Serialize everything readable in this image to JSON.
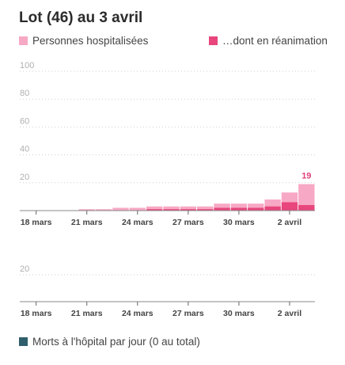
{
  "title": "Lot (46) au 3 avril",
  "legend": [
    {
      "label": "Personnes hospitalisées",
      "color": "#f7a8c4"
    },
    {
      "label": "…dont en réanimation",
      "color": "#e8467c"
    }
  ],
  "bottom_legend": {
    "label": "Morts à l'hôpital par jour (0 au total)",
    "color": "#2e5f6b"
  },
  "chart_data": [
    {
      "type": "bar",
      "x": [
        "18 mars",
        "19 mars",
        "20 mars",
        "21 mars",
        "22 mars",
        "23 mars",
        "24 mars",
        "25 mars",
        "26 mars",
        "27 mars",
        "28 mars",
        "29 mars",
        "30 mars",
        "31 mars",
        "1 avril",
        "2 avril",
        "3 avril"
      ],
      "xticks": [
        "18 mars",
        "21 mars",
        "24 mars",
        "27 mars",
        "30 mars",
        "2 avril"
      ],
      "yticks": [
        "100",
        "80",
        "60",
        "40",
        "20"
      ],
      "ylim": [
        0,
        100
      ],
      "series": [
        {
          "name": "Personnes hospitalisées",
          "values": [
            0,
            0,
            0,
            1,
            1,
            2,
            2,
            3,
            3,
            3,
            3,
            5,
            5,
            5,
            8,
            13,
            19
          ]
        },
        {
          "name": "…dont en réanimation",
          "values": [
            0,
            0,
            0,
            0,
            0,
            0,
            0,
            1,
            1,
            1,
            1,
            2,
            2,
            2,
            3,
            6,
            4
          ]
        }
      ],
      "last_label": "19"
    },
    {
      "type": "bar",
      "x": [
        "18 mars",
        "19 mars",
        "20 mars",
        "21 mars",
        "22 mars",
        "23 mars",
        "24 mars",
        "25 mars",
        "26 mars",
        "27 mars",
        "28 mars",
        "29 mars",
        "30 mars",
        "31 mars",
        "1 avril",
        "2 avril",
        "3 avril"
      ],
      "xticks": [
        "18 mars",
        "21 mars",
        "24 mars",
        "27 mars",
        "30 mars",
        "2 avril"
      ],
      "yticks": [
        "20"
      ],
      "ylim": [
        0,
        40
      ],
      "series": [
        {
          "name": "Morts à l'hôpital par jour",
          "values": [
            0,
            0,
            0,
            0,
            0,
            0,
            0,
            0,
            0,
            0,
            0,
            0,
            0,
            0,
            0,
            0,
            0
          ]
        }
      ]
    }
  ]
}
